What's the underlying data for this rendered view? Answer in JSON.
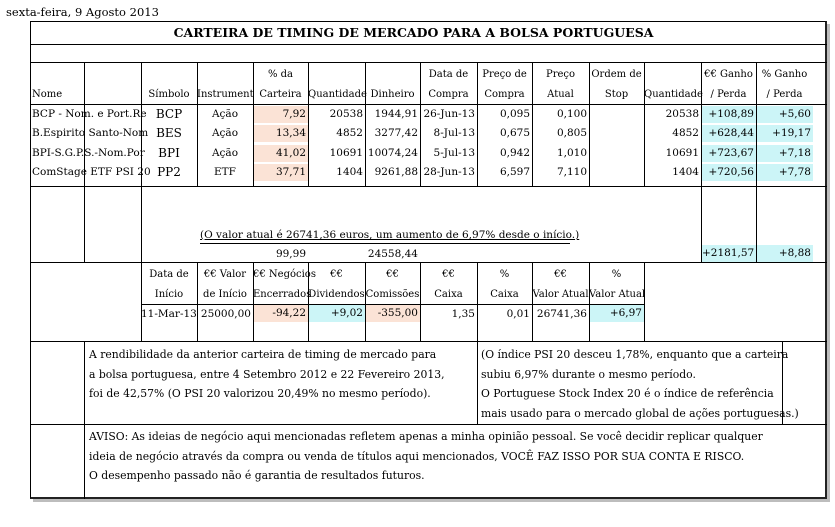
{
  "date": "sexta-feira, 9 Agosto 2013",
  "title": "CARTEIRA DE TIMING DE MERCADO PARA A BOLSA PORTUGUESA",
  "headers": {
    "nome": "Nome",
    "simbolo": "Símbolo",
    "instrumento": "Instrument",
    "pct_carteira_1": "% da",
    "pct_carteira_2": "Carteira",
    "quantidade": "Quantidade",
    "dinheiro": "Dinheiro",
    "data_compra_1": "Data de",
    "data_compra_2": "Compra",
    "preco_compra_1": "Preço de",
    "preco_compra_2": "Compra",
    "preco_atual_1": "Preço",
    "preco_atual_2": "Atual",
    "ordem_stop_1": "Ordem de",
    "ordem_stop_2": "Stop",
    "quantidade2": "Quantidade",
    "ganho_eur_1": "€€ Ganho",
    "ganho_eur_2": "/ Perda",
    "ganho_pct_1": "% Ganho",
    "ganho_pct_2": "/ Perda"
  },
  "rows": [
    {
      "nome": "BCP - Nom. e Port.Re",
      "simbolo": "BCP",
      "instrumento": "Ação",
      "pct": "7,92",
      "quantidade": "20538",
      "dinheiro": "1944,91",
      "data": "26-Jun-13",
      "preco_compra": "0,095",
      "preco_atual": "0,100",
      "stop": "",
      "quantidade2": "20538",
      "ganho_eur": "+108,89",
      "ganho_pct": "+5,60"
    },
    {
      "nome": "B.Espirito Santo-Nom",
      "simbolo": "BES",
      "instrumento": "Ação",
      "pct": "13,34",
      "quantidade": "4852",
      "dinheiro": "3277,42",
      "data": "8-Jul-13",
      "preco_compra": "0,675",
      "preco_atual": "0,805",
      "stop": "",
      "quantidade2": "4852",
      "ganho_eur": "+628,44",
      "ganho_pct": "+19,17"
    },
    {
      "nome": "BPI-S.G.P.S.-Nom.Por",
      "simbolo": "BPI",
      "instrumento": "Ação",
      "pct": "41,02",
      "quantidade": "10691",
      "dinheiro": "10074,24",
      "data": "5-Jul-13",
      "preco_compra": "0,942",
      "preco_atual": "1,010",
      "stop": "",
      "quantidade2": "10691",
      "ganho_eur": "+723,67",
      "ganho_pct": "+7,18"
    },
    {
      "nome": "ComStage ETF PSI 20",
      "simbolo": "PP2",
      "instrumento": "ETF",
      "pct": "37,71",
      "quantidade": "1404",
      "dinheiro": "9261,88",
      "data": "28-Jun-13",
      "preco_compra": "6,597",
      "preco_atual": "7,110",
      "stop": "",
      "quantidade2": "1404",
      "ganho_eur": "+720,56",
      "ganho_pct": "+7,78"
    }
  ],
  "summary": {
    "valor_atual_text": "(O valor atual é 26741,36 euros, um aumento de 6,97% desde o início.)",
    "pct_total": "99,99",
    "dinheiro_total": "24558,44",
    "ganho_eur_total": "+2181,57",
    "ganho_pct_total": "+8,88"
  },
  "stats_headers": {
    "data_inicio_1": "Data de",
    "data_inicio_2": "Início",
    "valor_inicio_1": "€€ Valor",
    "valor_inicio_2": "de Início",
    "negocios_1": "€€ Negócios",
    "negocios_2": "Encerrados",
    "dividendos_1": "€€",
    "dividendos_2": "Dividendos",
    "comissoes_1": "€€",
    "comissoes_2": "Comissões",
    "caixa_1": "€€",
    "caixa_2": "Caixa",
    "caixa_pct_1": "%",
    "caixa_pct_2": "Caixa",
    "valor_atual_1": "€€",
    "valor_atual_2": "Valor Atual",
    "valor_atual_pct_1": "%",
    "valor_atual_pct_2": "Valor Atual"
  },
  "stats": {
    "data_inicio": "11-Mar-13",
    "valor_inicio": "25000,00",
    "negocios": "-94,22",
    "dividendos": "+9,02",
    "comissoes": "-355,00",
    "caixa": "1,35",
    "caixa_pct": "0,01",
    "valor_atual": "26741,36",
    "valor_atual_pct": "+6,97"
  },
  "notes_left": [
    "A rendibilidade da anterior carteira de timing de mercado para",
    "a bolsa portuguesa, entre 4 Setembro 2012 e 22 Fevereiro 2013,",
    "foi de 42,57% (O PSI 20 valorizou 20,49% no mesmo período)."
  ],
  "notes_right": [
    "(O índice PSI 20 desceu 1,78%, enquanto que a carteira",
    "subiu 6,97% durante o mesmo período.",
    "O Portuguese Stock Index 20 é o índice de referência",
    "mais usado para o mercado global de ações portuguesas.)"
  ],
  "disclaimer": [
    "AVISO: As ideias de negócio aqui mencionadas refletem apenas a minha opinião pessoal. Se você decidir replicar qualquer",
    "ideia de negócio através da compra ou venda de títulos aqui mencionados, VOCÊ FAZ ISSO POR SUA CONTA E RISCO.",
    "O desempenho passado não é garantia de resultados futuros."
  ],
  "colors": {
    "highlight_blue": "#ccf5f7",
    "highlight_peach": "#fbe3d6"
  }
}
